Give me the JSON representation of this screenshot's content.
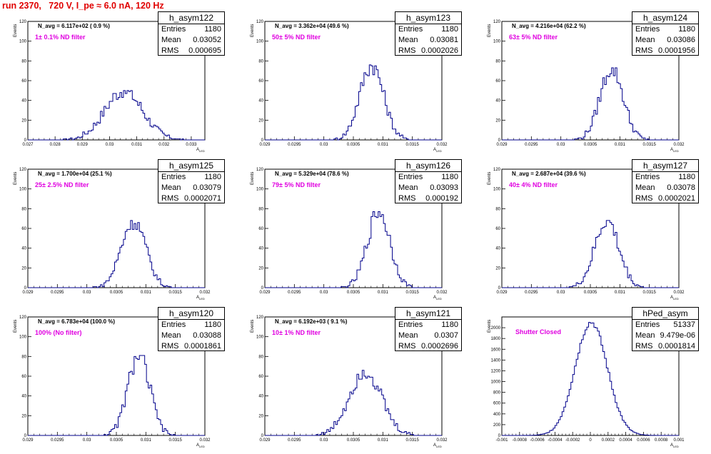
{
  "run_title": "run 2370,   720 V, I_pe ≈ 6.0 nA, 120 Hz",
  "colors": {
    "title": "#e00000",
    "histogram": "#00008b",
    "filter_text": "#e000e0"
  },
  "panels": [
    {
      "name": "h_asym122",
      "entries": "1180",
      "mean": "0.03052",
      "rms": "0.000695",
      "navg": "N_avg = 6.117e+02 ( 0.9 %)",
      "filter": "1± 0.1% ND filter"
    },
    {
      "name": "h_asym123",
      "entries": "1180",
      "mean": "0.03081",
      "rms": "0.0002026",
      "navg": "N_avg = 3.362e+04 (49.6 %)",
      "filter": "50± 5% ND filter"
    },
    {
      "name": "h_asym124",
      "entries": "1180",
      "mean": "0.03086",
      "rms": "0.0001956",
      "navg": "N_avg = 4.216e+04 (62.2 %)",
      "filter": "63± 5% ND filter"
    },
    {
      "name": "h_asym125",
      "entries": "1180",
      "mean": "0.03079",
      "rms": "0.0002071",
      "navg": "N_avg = 1.700e+04 (25.1 %)",
      "filter": "25± 2.5% ND filter"
    },
    {
      "name": "h_asym126",
      "entries": "1180",
      "mean": "0.03093",
      "rms": "0.000192",
      "navg": "N_avg = 5.329e+04 (78.6 %)",
      "filter": "79± 5% ND filter"
    },
    {
      "name": "h_asym127",
      "entries": "1180",
      "mean": "0.03078",
      "rms": "0.0002021",
      "navg": "N_avg = 2.687e+04 (39.6 %)",
      "filter": "40± 4% ND filter"
    },
    {
      "name": "h_asym120",
      "entries": "1180",
      "mean": "0.03088",
      "rms": "0.0001861",
      "navg": "N_avg = 6.783e+04 (100.0 %)",
      "filter": "100% (No filter)"
    },
    {
      "name": "h_asym121",
      "entries": "1180",
      "mean": "0.0307",
      "rms": "0.0002696",
      "navg": "N_avg = 6.192e+03 ( 9.1 %)",
      "filter": "10± 1% ND filter"
    },
    {
      "name": "hPed_asym",
      "entries": "51337",
      "mean": "9.479e-06",
      "rms": "0.0001814",
      "navg": "",
      "filter": "Shutter Closed"
    }
  ],
  "stat_labels": {
    "entries": "Entries",
    "mean": "Mean",
    "rms": "RMS"
  },
  "axis_titles": {
    "y": "Events",
    "x_main": "A",
    "x_sub": "LED"
  },
  "chart_data": [
    {
      "type": "bar",
      "hist": "h_asym122",
      "xlim": [
        0.027,
        0.0335
      ],
      "ylim": [
        0,
        120
      ],
      "xticks": [
        "0.027",
        "0.028",
        "0.029",
        "0.03",
        "0.031",
        "0.032",
        "0.033"
      ],
      "yticks": [
        "0",
        "20",
        "40",
        "60",
        "80",
        "100",
        "120"
      ],
      "mean": 0.03052,
      "rms": 0.000695,
      "peak": 50,
      "entries": 1180
    },
    {
      "type": "bar",
      "hist": "h_asym123",
      "xlim": [
        0.029,
        0.032
      ],
      "ylim": [
        0,
        120
      ],
      "xticks": [
        "0.029",
        "0.0295",
        "0.03",
        "0.0305",
        "0.031",
        "0.0315",
        "0.032"
      ],
      "yticks": [
        "0",
        "20",
        "40",
        "60",
        "80",
        "100",
        "120"
      ],
      "mean": 0.03081,
      "rms": 0.0002026,
      "peak": 76,
      "entries": 1180
    },
    {
      "type": "bar",
      "hist": "h_asym124",
      "xlim": [
        0.029,
        0.032
      ],
      "ylim": [
        0,
        120
      ],
      "xticks": [
        "0.029",
        "0.0295",
        "0.03",
        "0.0305",
        "0.031",
        "0.0315",
        "0.032"
      ],
      "yticks": [
        "0",
        "20",
        "40",
        "60",
        "80",
        "100",
        "120"
      ],
      "mean": 0.03086,
      "rms": 0.0001956,
      "peak": 73,
      "entries": 1180
    },
    {
      "type": "bar",
      "hist": "h_asym125",
      "xlim": [
        0.029,
        0.032
      ],
      "ylim": [
        0,
        120
      ],
      "xticks": [
        "0.029",
        "0.0295",
        "0.03",
        "0.0305",
        "0.031",
        "0.0315",
        "0.032"
      ],
      "yticks": [
        "0",
        "20",
        "40",
        "60",
        "80",
        "100",
        "120"
      ],
      "mean": 0.03079,
      "rms": 0.0002071,
      "peak": 68,
      "entries": 1180
    },
    {
      "type": "bar",
      "hist": "h_asym126",
      "xlim": [
        0.029,
        0.032
      ],
      "ylim": [
        0,
        120
      ],
      "xticks": [
        "0.029",
        "0.0295",
        "0.03",
        "0.0305",
        "0.031",
        "0.0315",
        "0.032"
      ],
      "yticks": [
        "0",
        "20",
        "40",
        "60",
        "80",
        "100",
        "120"
      ],
      "mean": 0.03093,
      "rms": 0.000192,
      "peak": 77,
      "entries": 1180
    },
    {
      "type": "bar",
      "hist": "h_asym127",
      "xlim": [
        0.029,
        0.032
      ],
      "ylim": [
        0,
        120
      ],
      "xticks": [
        "0.029",
        "0.0295",
        "0.03",
        "0.0305",
        "0.031",
        "0.0315",
        "0.032"
      ],
      "yticks": [
        "0",
        "20",
        "40",
        "60",
        "80",
        "100",
        "120"
      ],
      "mean": 0.03078,
      "rms": 0.0002021,
      "peak": 68,
      "entries": 1180
    },
    {
      "type": "bar",
      "hist": "h_asym120",
      "xlim": [
        0.029,
        0.032
      ],
      "ylim": [
        0,
        120
      ],
      "xticks": [
        "0.029",
        "0.0295",
        "0.03",
        "0.0305",
        "0.031",
        "0.0315",
        "0.032"
      ],
      "yticks": [
        "0",
        "20",
        "40",
        "60",
        "80",
        "100",
        "120"
      ],
      "mean": 0.03088,
      "rms": 0.0001861,
      "peak": 81,
      "entries": 1180
    },
    {
      "type": "bar",
      "hist": "h_asym121",
      "xlim": [
        0.029,
        0.032
      ],
      "ylim": [
        0,
        120
      ],
      "xticks": [
        "0.029",
        "0.0295",
        "0.03",
        "0.0305",
        "0.031",
        "0.0315",
        "0.032"
      ],
      "yticks": [
        "0",
        "20",
        "40",
        "60",
        "80",
        "100",
        "120"
      ],
      "mean": 0.0307,
      "rms": 0.0002696,
      "peak": 66,
      "entries": 1180
    },
    {
      "type": "bar",
      "hist": "hPed_asym",
      "xlim": [
        -0.001,
        0.001
      ],
      "ylim": [
        0,
        2200
      ],
      "xticks": [
        "-0.001",
        "-0.0008",
        "-0.0006",
        "-0.0004",
        "-0.0002",
        "0",
        "0.0002",
        "0.0004",
        "0.0006",
        "0.0008",
        "0.001"
      ],
      "yticks": [
        "0",
        "200",
        "400",
        "600",
        "800",
        "1000",
        "1200",
        "1400",
        "1600",
        "1800",
        "2000"
      ],
      "mean": 9.479e-06,
      "rms": 0.0001814,
      "peak": 2100,
      "entries": 51337
    }
  ]
}
